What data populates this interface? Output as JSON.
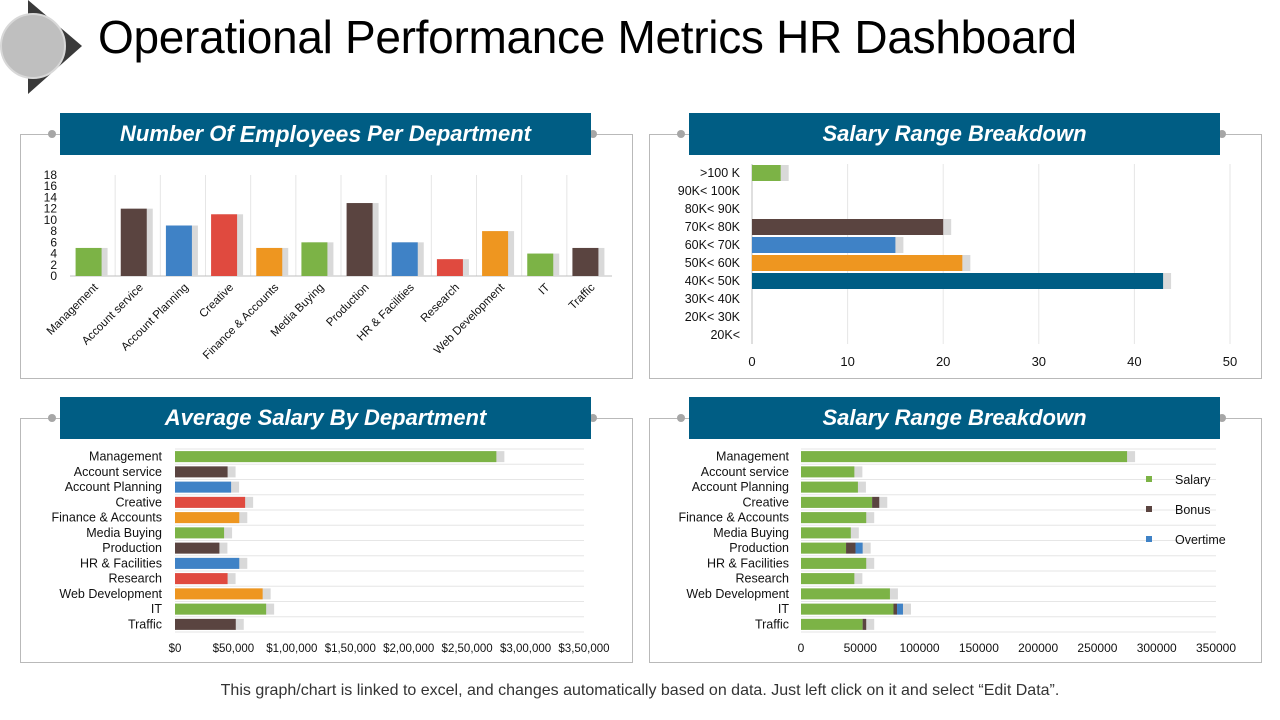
{
  "page": {
    "title": "Operational Performance Metrics HR Dashboard",
    "footnote": "This graph/chart is linked to excel, and changes automatically based on data. Just left click on it and select “Edit Data”."
  },
  "panels": {
    "employees": {
      "title_pre": "Number Of",
      "title_big": "Employees",
      "title_post": "Per Department"
    },
    "salary_range_top": {
      "title": "Salary Range Breakdown"
    },
    "avg_salary": {
      "title": "Average Salary By Department"
    },
    "salary_range_bottom": {
      "title": "Salary Range Breakdown"
    }
  },
  "colors": {
    "header_bg": "#005d84",
    "green": "#7cb346",
    "brown": "#5a4440",
    "blue": "#3f82c6",
    "red": "#e04a3f",
    "orange": "#ee9620",
    "teal": "#005d84",
    "shadow": "#d9d9d9",
    "grid": "#e6e6e6"
  },
  "chart_data": [
    {
      "id": "employees-per-department",
      "type": "bar",
      "categories": [
        "Management",
        "Account service",
        "Account Planning",
        "Creative",
        "Finance & Accounts",
        "Media Buying",
        "Production",
        "HR & Facilities",
        "Research",
        "Web Development",
        "IT",
        "Traffic"
      ],
      "values": [
        5,
        12,
        9,
        11,
        5,
        6,
        13,
        6,
        3,
        8,
        4,
        5
      ],
      "bar_colors": [
        "green",
        "brown",
        "blue",
        "red",
        "orange",
        "green",
        "brown",
        "blue",
        "red",
        "orange",
        "green",
        "brown"
      ],
      "yticks": [
        "0",
        "2",
        "4",
        "6",
        "8",
        "10",
        "12",
        "14",
        "16",
        "18"
      ],
      "ylim": [
        0,
        18
      ],
      "grid": true
    },
    {
      "id": "salary-range-breakdown-top",
      "type": "bar",
      "orientation": "horizontal",
      "categories": [
        ">100 K",
        "90K< 100K",
        "80K< 90K",
        "70K< 80K",
        "60K< 70K",
        "50K< 60K",
        "40K< 50K",
        "30K< 40K",
        "20K< 30K",
        "20K<"
      ],
      "values": [
        3,
        0,
        0,
        20,
        15,
        22,
        43,
        0,
        0,
        0
      ],
      "bar_colors": [
        "green",
        "green",
        "green",
        "brown",
        "blue",
        "orange",
        "teal",
        "green",
        "green",
        "green"
      ],
      "xticks": [
        "0",
        "10",
        "20",
        "30",
        "40",
        "50"
      ],
      "xlim": [
        0,
        50
      ],
      "grid": true
    },
    {
      "id": "average-salary-by-department",
      "type": "bar",
      "orientation": "horizontal",
      "categories": [
        "Management",
        "Account service",
        "Account Planning",
        "Creative",
        "Finance & Accounts",
        "Media Buying",
        "Production",
        "HR & Facilities",
        "Research",
        "Web Development",
        "IT",
        "Traffic"
      ],
      "values": [
        275000,
        45000,
        48000,
        60000,
        55000,
        42000,
        38000,
        55000,
        45000,
        75000,
        78000,
        52000
      ],
      "bar_colors": [
        "green",
        "brown",
        "blue",
        "red",
        "orange",
        "green",
        "brown",
        "blue",
        "red",
        "orange",
        "green",
        "brown"
      ],
      "xticks": [
        "$0",
        "$50,000",
        "$1,00,000",
        "$1,50,000",
        "$2,00,000",
        "$2,50,000",
        "$3,00,000",
        "$3,50,000"
      ],
      "xlim": [
        0,
        350000
      ],
      "grid": true
    },
    {
      "id": "salary-range-breakdown-bottom",
      "type": "bar",
      "orientation": "horizontal",
      "stacked": true,
      "categories": [
        "Management",
        "Account service",
        "Account Planning",
        "Creative",
        "Finance & Accounts",
        "Media Buying",
        "Production",
        "HR & Facilities",
        "Research",
        "Web Development",
        "IT",
        "Traffic"
      ],
      "series": [
        {
          "name": "Salary",
          "color": "green",
          "values": [
            275000,
            45000,
            48000,
            60000,
            55000,
            42000,
            38000,
            55000,
            45000,
            75000,
            78000,
            52000
          ]
        },
        {
          "name": "Bonus",
          "color": "brown",
          "values": [
            0,
            0,
            0,
            6000,
            0,
            0,
            8000,
            0,
            0,
            0,
            3000,
            3000
          ]
        },
        {
          "name": "Overtime",
          "color": "blue",
          "values": [
            0,
            0,
            0,
            0,
            0,
            0,
            6000,
            0,
            0,
            0,
            5000,
            0
          ]
        }
      ],
      "xticks": [
        "0",
        "50000",
        "100000",
        "150000",
        "200000",
        "250000",
        "300000",
        "350000"
      ],
      "xlim": [
        0,
        350000
      ],
      "legend": "right",
      "grid": true
    }
  ]
}
